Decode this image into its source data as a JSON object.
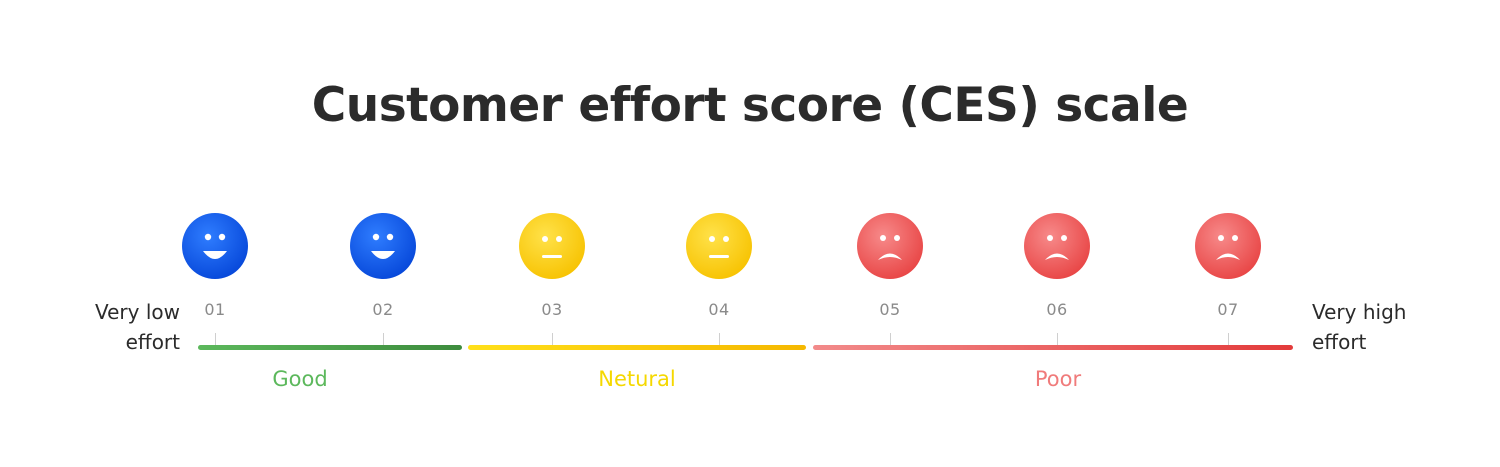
{
  "title": "Customer effort score (CES) scale",
  "scale": {
    "left_label": "Very low effort",
    "right_label": "Very high effort",
    "points": [
      {
        "number": "01",
        "mood": "happy"
      },
      {
        "number": "02",
        "mood": "happy"
      },
      {
        "number": "03",
        "mood": "neutral"
      },
      {
        "number": "04",
        "mood": "neutral"
      },
      {
        "number": "05",
        "mood": "sad"
      },
      {
        "number": "06",
        "mood": "sad"
      },
      {
        "number": "07",
        "mood": "sad"
      }
    ],
    "categories": [
      {
        "label": "Good",
        "color": "#5cb85c"
      },
      {
        "label": "Netural",
        "color": "#f5d800"
      },
      {
        "label": "Poor",
        "color": "#f07b7b"
      }
    ]
  },
  "colors": {
    "happy": "#0a5cff",
    "neutral": "#ffd21a",
    "sad": "#ef5e5e",
    "title": "#2b2b2b"
  }
}
